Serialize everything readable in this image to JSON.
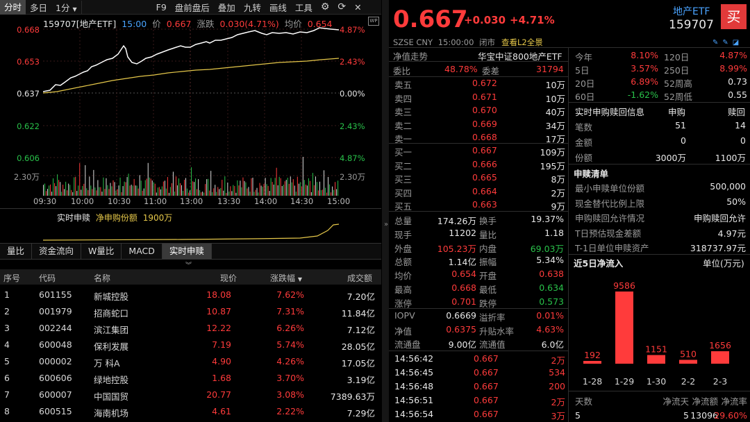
{
  "toolbar": {
    "items": [
      "分时",
      "多日",
      "1分",
      "F9",
      "盘前盘后",
      "叠加",
      "九转",
      "画线",
      "工具"
    ]
  },
  "chart": {
    "code_name": "159707[地产ETF]",
    "time": "15:00",
    "price_label": "价",
    "price": "0.667",
    "chg_label": "涨跌",
    "chg": "0.030(4.71%)",
    "avg_label": "均价",
    "avg": "0.654",
    "y_left": [
      "0.668",
      "0.653",
      "0.637",
      "0.622",
      "0.606"
    ],
    "y_right": [
      "4.87%",
      "2.43%",
      "0.00%",
      "2.43%",
      "4.87%"
    ],
    "vol_left": "2.30万",
    "vol_right": "2.30万",
    "times": [
      "09:30",
      "10:00",
      "10:30",
      "11:00",
      "13:00",
      "13:30",
      "14:00",
      "14:30",
      "15:00"
    ],
    "sub_label": "实时申赎",
    "sub_name": "净申购份额",
    "sub_val": "1900万"
  },
  "subtabs": [
    "量比",
    "资金流向",
    "W量比",
    "MACD",
    "实时申赎"
  ],
  "table": {
    "headers": [
      "序号",
      "代码",
      "名称",
      "现价",
      "涨跌幅",
      "成交额"
    ],
    "rows": [
      [
        "1",
        "601155",
        "新城控股",
        "18.08",
        "7.62%",
        "7.20亿"
      ],
      [
        "2",
        "001979",
        "招商蛇口",
        "10.87",
        "7.31%",
        "11.84亿"
      ],
      [
        "3",
        "002244",
        "滨江集团",
        "12.22",
        "6.26%",
        "7.12亿"
      ],
      [
        "4",
        "600048",
        "保利发展",
        "7.19",
        "5.74%",
        "28.05亿"
      ],
      [
        "5",
        "000002",
        "万 科A",
        "4.90",
        "4.26%",
        "17.05亿"
      ],
      [
        "6",
        "600606",
        "绿地控股",
        "1.68",
        "3.70%",
        "3.19亿"
      ],
      [
        "7",
        "600007",
        "中国国贸",
        "20.77",
        "3.08%",
        "7389.63万"
      ],
      [
        "8",
        "600515",
        "海南机场",
        "4.61",
        "2.22%",
        "7.29亿"
      ]
    ]
  },
  "quote": {
    "price": "0.667",
    "chg": "+0.030",
    "pct": "+4.71%",
    "name": "地产ETF",
    "code": "159707",
    "buy": "买",
    "market": "SZSE",
    "currency": "CNY",
    "time": "15:00:00",
    "status": "闭市",
    "l2": "查看L2全景",
    "nav_trend": "净值走势",
    "index_name": "华宝中证800地产ETF",
    "webi_label": "委比",
    "webi": "48.78%",
    "wecha_label": "委差",
    "wecha": "31794",
    "asks": [
      [
        "卖五",
        "0.672",
        "10万"
      ],
      [
        "卖四",
        "0.671",
        "10万"
      ],
      [
        "卖三",
        "0.670",
        "40万"
      ],
      [
        "卖二",
        "0.669",
        "34万"
      ],
      [
        "卖一",
        "0.668",
        "17万"
      ]
    ],
    "bids": [
      [
        "买一",
        "0.667",
        "109万"
      ],
      [
        "买二",
        "0.666",
        "195万"
      ],
      [
        "买三",
        "0.665",
        "8万"
      ],
      [
        "买四",
        "0.664",
        "2万"
      ],
      [
        "买五",
        "0.663",
        "9万"
      ]
    ],
    "stats": [
      [
        "总量",
        "174.26万",
        "换手",
        "19.37%"
      ],
      [
        "现手",
        "11202",
        "量比",
        "1.18"
      ],
      [
        "外盘",
        "105.23万",
        "内盘",
        "69.03万"
      ],
      [
        "总额",
        "1.14亿",
        "振幅",
        "5.34%"
      ],
      [
        "均价",
        "0.654",
        "开盘",
        "0.638"
      ],
      [
        "最高",
        "0.668",
        "最低",
        "0.634"
      ],
      [
        "涨停",
        "0.701",
        "跌停",
        "0.573"
      ]
    ],
    "stats2": [
      [
        "IOPV",
        "0.6669",
        "溢折率",
        "0.01%"
      ],
      [
        "净值",
        "0.6375",
        "升贴水率",
        "4.63%"
      ],
      [
        "流通盘",
        "9.00亿",
        "流通值",
        "6.0亿"
      ]
    ],
    "ticks": [
      [
        "14:56:42",
        "0.667",
        "2万"
      ],
      [
        "14:56:45",
        "0.667",
        "534"
      ],
      [
        "14:56:48",
        "0.667",
        "200"
      ],
      [
        "14:56:51",
        "0.667",
        "2万"
      ],
      [
        "14:56:54",
        "0.667",
        "3万"
      ]
    ]
  },
  "perf": [
    [
      "今年",
      "8.10%",
      "120日",
      "4.87%"
    ],
    [
      "5日",
      "3.57%",
      "250日",
      "8.99%"
    ],
    [
      "20日",
      "6.89%",
      "52周高",
      "0.73"
    ],
    [
      "60日",
      "-1.62%",
      "52周低",
      "0.55"
    ]
  ],
  "redeem": {
    "title": "实时申购赎回信息",
    "h1": "申购",
    "h2": "赎回",
    "rows": [
      [
        "笔数",
        "51",
        "14"
      ],
      [
        "金额",
        "0",
        "0"
      ],
      [
        "份额",
        "3000万",
        "1100万"
      ]
    ]
  },
  "list": {
    "title": "申赎清单",
    "rows": [
      [
        "最小申赎单位份额",
        "500,000"
      ],
      [
        "现金替代比例上限",
        "50%"
      ],
      [
        "申购赎回允许情况",
        "申购赎回允许"
      ],
      [
        "T日预估现金差额",
        "4.97元"
      ],
      [
        "T-1日单位申赎资产",
        "318737.97元"
      ]
    ]
  },
  "flow": {
    "title": "近5日净流入",
    "unit": "单位(万元)",
    "bars": [
      {
        "date": "1-28",
        "value": 192
      },
      {
        "date": "1-29",
        "value": 9586
      },
      {
        "date": "1-30",
        "value": 1151
      },
      {
        "date": "2-2",
        "value": 510
      },
      {
        "date": "2-3",
        "value": 1656
      }
    ],
    "foot_h": [
      "天数",
      "净流天",
      "净流额",
      "净流率"
    ],
    "foot_v": [
      "5",
      "5",
      "13096",
      "29.60%"
    ]
  },
  "colors": {
    "up": "#ff3b3b",
    "down": "#29c24a",
    "price_line": "#ffffff",
    "avg_line": "#e6c84a"
  }
}
